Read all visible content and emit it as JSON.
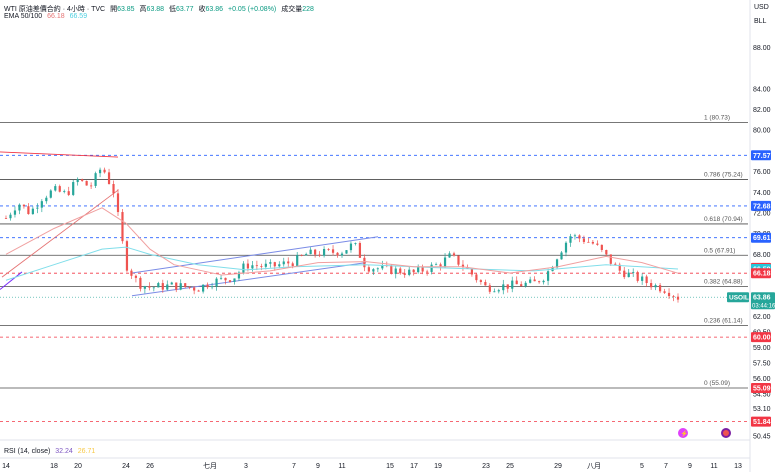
{
  "header": {
    "title": "WTI 原油差價合約 · 4小時 · TVC",
    "open_label": "開",
    "open": "63.85",
    "high_label": "高",
    "high": "63.88",
    "low_label": "低",
    "low": "63.77",
    "close_label": "收",
    "close": "63.86",
    "change": "+0.05 (+0.08%)",
    "volume_label": "成交量",
    "volume": "228",
    "ema_label": "EMA 50/100",
    "ema50": "66.18",
    "ema100": "66.59"
  },
  "axis_top": {
    "currency": "USD",
    "unit": "BLL"
  },
  "rsi": {
    "label": "RSI (14, close)",
    "value1": "32.24",
    "value2": "26.71"
  },
  "colors": {
    "candle_up": "#26a69a",
    "candle_down": "#ef5350",
    "ema50": "#f0a0a0",
    "ema100": "#80deea",
    "channel": "#7b8ce6",
    "blue_level": "#2962ff",
    "red_level": "#f23645"
  },
  "chart_data": {
    "type": "candlestick",
    "y_range": [
      50.45,
      89.0
    ],
    "y_ticks": [
      "88.00",
      "84.00",
      "82.00",
      "80.00",
      "76.00",
      "74.00",
      "72.00",
      "70.00",
      "68.00",
      "66.00",
      "62.00",
      "60.50",
      "59.00",
      "57.50",
      "56.00",
      "54.50",
      "53.10",
      "50.45"
    ],
    "x_ticks": [
      {
        "label": "14",
        "x": 0
      },
      {
        "label": "18",
        "x": 4
      },
      {
        "label": "20",
        "x": 6
      },
      {
        "label": "24",
        "x": 10
      },
      {
        "label": "26",
        "x": 12
      },
      {
        "label": "七月",
        "x": 17
      },
      {
        "label": "3",
        "x": 20
      },
      {
        "label": "7",
        "x": 24
      },
      {
        "label": "9",
        "x": 26
      },
      {
        "label": "11",
        "x": 28
      },
      {
        "label": "15",
        "x": 32
      },
      {
        "label": "17",
        "x": 34
      },
      {
        "label": "19",
        "x": 36
      },
      {
        "label": "23",
        "x": 40
      },
      {
        "label": "25",
        "x": 42
      },
      {
        "label": "29",
        "x": 46
      },
      {
        "label": "八月",
        "x": 49
      },
      {
        "label": "5",
        "x": 53
      },
      {
        "label": "7",
        "x": 55
      },
      {
        "label": "9",
        "x": 57
      },
      {
        "label": "11",
        "x": 59
      },
      {
        "label": "13",
        "x": 61
      }
    ],
    "fib_levels": [
      {
        "label": "1 (80.73)",
        "price": 80.73
      },
      {
        "label": "0.786 (75.24)",
        "price": 75.24
      },
      {
        "label": "0.618 (70.94)",
        "price": 70.94
      },
      {
        "label": "0.5 (67.91)",
        "price": 67.91
      },
      {
        "label": "0.382 (64.88)",
        "price": 64.88
      },
      {
        "label": "0.236 (61.14)",
        "price": 61.14
      },
      {
        "label": "0 (55.09)",
        "price": 55.09
      }
    ],
    "price_labels": [
      {
        "text": "77.57",
        "price": 77.57,
        "kind": "blue"
      },
      {
        "text": "72.68",
        "price": 72.68,
        "kind": "blue"
      },
      {
        "text": "69.61",
        "price": 69.61,
        "kind": "blue"
      },
      {
        "text": "66.69",
        "price": 66.69,
        "kind": "red"
      },
      {
        "text": "66.59",
        "price": 66.59,
        "kind": "ema100"
      },
      {
        "text": "66.18",
        "price": 66.18,
        "kind": "red"
      },
      {
        "text": "60.00",
        "price": 60.0,
        "kind": "red"
      },
      {
        "text": "55.09",
        "price": 55.09,
        "kind": "red"
      },
      {
        "text": "51.84",
        "price": 51.84,
        "kind": "red"
      }
    ],
    "dashed_levels": [
      {
        "price": 77.57,
        "kind": "blue"
      },
      {
        "price": 72.68,
        "kind": "blue"
      },
      {
        "price": 69.61,
        "kind": "blue"
      },
      {
        "price": 66.18,
        "kind": "red"
      },
      {
        "price": 60.0,
        "kind": "red"
      },
      {
        "price": 51.84,
        "kind": "red"
      }
    ],
    "current": {
      "symbol": "USOIL",
      "price": 63.86,
      "price_text": "63.86",
      "countdown": "03:44:16"
    },
    "ohlc_path": [
      {
        "t": 0,
        "p": 71.5
      },
      {
        "t": 1,
        "p": 73.0
      },
      {
        "t": 2,
        "p": 72.0
      },
      {
        "t": 3,
        "p": 73.5
      },
      {
        "t": 4,
        "p": 74.2
      },
      {
        "t": 5,
        "p": 73.8
      },
      {
        "t": 6,
        "p": 75.2
      },
      {
        "t": 7,
        "p": 74.5
      },
      {
        "t": 8,
        "p": 76.5
      },
      {
        "t": 9,
        "p": 74.0
      },
      {
        "t": 10,
        "p": 67.0
      },
      {
        "t": 11,
        "p": 65.2
      },
      {
        "t": 12,
        "p": 64.8
      },
      {
        "t": 14,
        "p": 65.0
      },
      {
        "t": 16,
        "p": 64.7
      },
      {
        "t": 17,
        "p": 65.3
      },
      {
        "t": 19,
        "p": 65.8
      },
      {
        "t": 20,
        "p": 67.0
      },
      {
        "t": 22,
        "p": 66.8
      },
      {
        "t": 24,
        "p": 67.3
      },
      {
        "t": 25,
        "p": 68.0
      },
      {
        "t": 27,
        "p": 68.2
      },
      {
        "t": 28,
        "p": 68.3
      },
      {
        "t": 29,
        "p": 69.0
      },
      {
        "t": 30,
        "p": 66.8
      },
      {
        "t": 32,
        "p": 66.5
      },
      {
        "t": 34,
        "p": 66.2
      },
      {
        "t": 36,
        "p": 67.0
      },
      {
        "t": 37,
        "p": 67.8
      },
      {
        "t": 38,
        "p": 67.0
      },
      {
        "t": 40,
        "p": 64.8
      },
      {
        "t": 41,
        "p": 64.9
      },
      {
        "t": 42,
        "p": 65.0
      },
      {
        "t": 44,
        "p": 65.2
      },
      {
        "t": 45,
        "p": 66.0
      },
      {
        "t": 46,
        "p": 68.0
      },
      {
        "t": 47,
        "p": 69.8
      },
      {
        "t": 48,
        "p": 69.5
      },
      {
        "t": 49,
        "p": 69.0
      },
      {
        "t": 50,
        "p": 67.8
      },
      {
        "t": 51,
        "p": 66.5
      },
      {
        "t": 52,
        "p": 66.0
      },
      {
        "t": 53,
        "p": 65.5
      },
      {
        "t": 54,
        "p": 65.0
      },
      {
        "t": 55,
        "p": 64.6
      },
      {
        "t": 56,
        "p": 63.86
      }
    ],
    "ema50": [
      {
        "t": 0,
        "p": 68.0
      },
      {
        "t": 4,
        "p": 70.5
      },
      {
        "t": 8,
        "p": 72.5
      },
      {
        "t": 10,
        "p": 71.0
      },
      {
        "t": 12,
        "p": 68.5
      },
      {
        "t": 14,
        "p": 67.0
      },
      {
        "t": 18,
        "p": 66.0
      },
      {
        "t": 22,
        "p": 66.4
      },
      {
        "t": 26,
        "p": 67.2
      },
      {
        "t": 30,
        "p": 67.3
      },
      {
        "t": 34,
        "p": 66.8
      },
      {
        "t": 38,
        "p": 66.8
      },
      {
        "t": 42,
        "p": 66.2
      },
      {
        "t": 46,
        "p": 66.8
      },
      {
        "t": 50,
        "p": 67.8
      },
      {
        "t": 53,
        "p": 67.2
      },
      {
        "t": 56,
        "p": 66.18
      }
    ],
    "ema100": [
      {
        "t": 0,
        "p": 65.5
      },
      {
        "t": 4,
        "p": 67.0
      },
      {
        "t": 8,
        "p": 68.5
      },
      {
        "t": 10,
        "p": 68.7
      },
      {
        "t": 12,
        "p": 68.0
      },
      {
        "t": 16,
        "p": 67.0
      },
      {
        "t": 20,
        "p": 66.5
      },
      {
        "t": 24,
        "p": 66.8
      },
      {
        "t": 30,
        "p": 67.0
      },
      {
        "t": 36,
        "p": 66.7
      },
      {
        "t": 44,
        "p": 66.4
      },
      {
        "t": 50,
        "p": 67.0
      },
      {
        "t": 56,
        "p": 66.59
      }
    ],
    "channel": [
      {
        "t1": 10.5,
        "p1": 64.0,
        "t2": 30,
        "p2": 67.2
      },
      {
        "t1": 10.5,
        "p1": 66.2,
        "t2": 31,
        "p2": 69.7
      }
    ]
  }
}
